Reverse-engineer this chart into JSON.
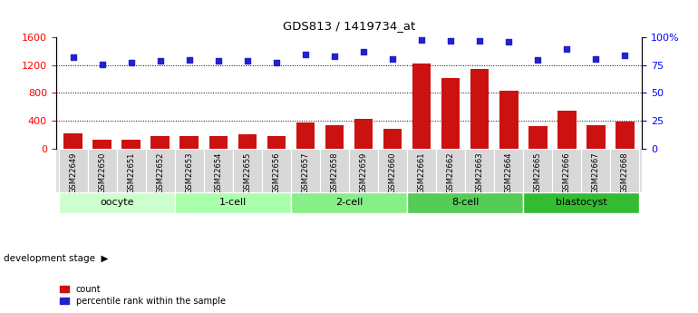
{
  "title": "GDS813 / 1419734_at",
  "samples": [
    "GSM22649",
    "GSM22650",
    "GSM22651",
    "GSM22652",
    "GSM22653",
    "GSM22654",
    "GSM22655",
    "GSM22656",
    "GSM22657",
    "GSM22658",
    "GSM22659",
    "GSM22660",
    "GSM22661",
    "GSM22662",
    "GSM22663",
    "GSM22664",
    "GSM22665",
    "GSM22666",
    "GSM22667",
    "GSM22668"
  ],
  "counts": [
    220,
    130,
    130,
    175,
    180,
    175,
    200,
    175,
    370,
    340,
    420,
    280,
    1230,
    1010,
    1150,
    830,
    320,
    550,
    340,
    390
  ],
  "percentiles": [
    82,
    76,
    77,
    79,
    80,
    79,
    79,
    77,
    85,
    83,
    87,
    81,
    98,
    97,
    97,
    96,
    80,
    90,
    81,
    84
  ],
  "groups": [
    {
      "label": "oocyte",
      "start": 0,
      "end": 3,
      "color": "#ccffcc"
    },
    {
      "label": "1-cell",
      "start": 4,
      "end": 7,
      "color": "#aaffaa"
    },
    {
      "label": "2-cell",
      "start": 8,
      "end": 11,
      "color": "#88ee88"
    },
    {
      "label": "8-cell",
      "start": 12,
      "end": 15,
      "color": "#55cc55"
    },
    {
      "label": "blastocyst",
      "start": 16,
      "end": 19,
      "color": "#33bb33"
    }
  ],
  "bar_color": "#cc1111",
  "dot_color": "#2222cc",
  "ylim_left": [
    0,
    1600
  ],
  "ylim_right": [
    0,
    100
  ],
  "yticks_left": [
    0,
    400,
    800,
    1200,
    1600
  ],
  "yticks_right": [
    0,
    25,
    50,
    75,
    100
  ],
  "ytick_labels_right": [
    "0",
    "25",
    "50",
    "75",
    "100%"
  ],
  "grid_values": [
    400,
    800,
    1200
  ],
  "dev_stage_label": "development stage"
}
